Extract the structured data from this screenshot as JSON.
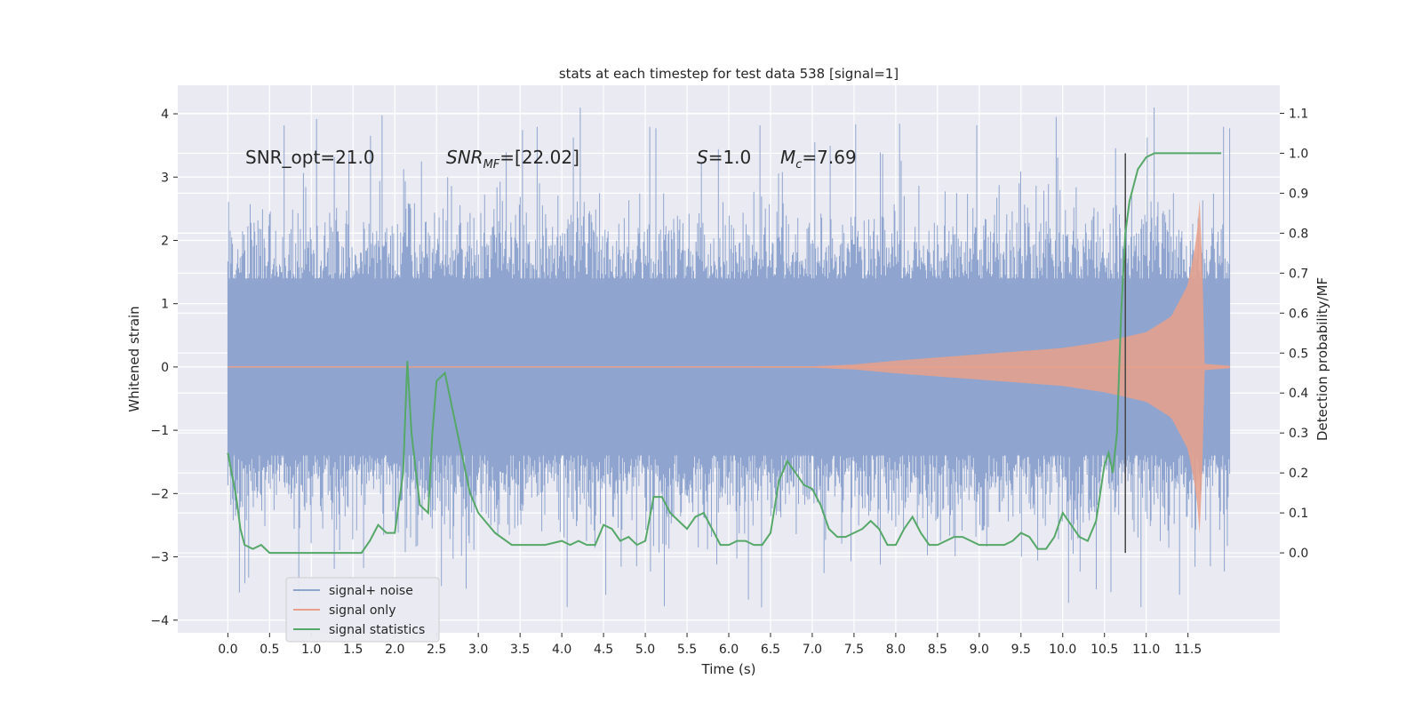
{
  "chart_data": {
    "type": "line",
    "title": "stats at each timestep for test data 538 [signal=1]",
    "xlabel": "Time (s)",
    "ylabel": "Whitened strain",
    "ylabel_right": "Detection probability/MF",
    "xlim": [
      -0.6,
      12.6
    ],
    "ylim": [
      -4.2,
      4.45
    ],
    "ylim_right": [
      -0.2,
      1.17
    ],
    "x_ticks": [
      "0.0",
      "0.5",
      "1.0",
      "1.5",
      "2.0",
      "2.5",
      "3.0",
      "3.5",
      "4.0",
      "4.5",
      "5.0",
      "5.5",
      "6.0",
      "6.5",
      "7.0",
      "7.5",
      "8.0",
      "8.5",
      "9.0",
      "9.5",
      "10.0",
      "10.5",
      "11.0",
      "11.5"
    ],
    "y_ticks": [
      "-4",
      "-3",
      "-2",
      "-1",
      "0",
      "1",
      "2",
      "3",
      "4"
    ],
    "y_ticks_right": [
      "0.0",
      "0.1",
      "0.2",
      "0.3",
      "0.4",
      "0.5",
      "0.6",
      "0.7",
      "0.8",
      "0.9",
      "1.0",
      "1.1"
    ],
    "grid": true,
    "legend_position": "lower-left",
    "annotations": {
      "snr_opt": "SNR_opt=21.0",
      "snr_mf_main": "SNR",
      "snr_mf_sub": "MF",
      "snr_mf_value": "=[22.02]",
      "s_main": "S",
      "s_value": "=1.0",
      "mc_main": "M",
      "mc_sub": "c",
      "mc_value": "=7.69"
    },
    "vertical_line_x": 10.75,
    "series": [
      {
        "name": "signal+ noise",
        "color": "#8fa5cf",
        "axis": "left",
        "description_values": {
          "x_start": 0.0,
          "x_end": 12.0,
          "core_band": [
            -1.4,
            1.4
          ],
          "peak_max": 4.1,
          "peak_min": -3.8
        }
      },
      {
        "name": "signal only",
        "color": "#e8a08a",
        "axis": "left",
        "envelope": {
          "x": [
            0.0,
            7.0,
            7.5,
            8.0,
            9.0,
            10.0,
            10.5,
            11.0,
            11.3,
            11.5,
            11.6,
            11.65,
            11.7,
            12.0
          ],
          "amplitude": [
            0.0,
            0.01,
            0.04,
            0.1,
            0.2,
            0.3,
            0.4,
            0.55,
            0.8,
            1.3,
            2.0,
            2.8,
            0.05,
            0.02
          ]
        }
      },
      {
        "name": "signal statistics",
        "color": "#55a868",
        "axis": "right",
        "x": [
          0.0,
          0.1,
          0.15,
          0.2,
          0.3,
          0.4,
          0.5,
          0.6,
          0.8,
          1.0,
          1.2,
          1.4,
          1.6,
          1.7,
          1.8,
          1.9,
          2.0,
          2.1,
          2.15,
          2.2,
          2.3,
          2.4,
          2.45,
          2.5,
          2.6,
          2.7,
          2.8,
          2.9,
          3.0,
          3.2,
          3.4,
          3.6,
          3.8,
          4.0,
          4.1,
          4.2,
          4.3,
          4.4,
          4.5,
          4.6,
          4.7,
          4.8,
          4.9,
          5.0,
          5.1,
          5.2,
          5.3,
          5.4,
          5.5,
          5.6,
          5.7,
          5.8,
          5.9,
          6.0,
          6.1,
          6.2,
          6.3,
          6.4,
          6.5,
          6.6,
          6.7,
          6.8,
          6.9,
          7.0,
          7.1,
          7.2,
          7.3,
          7.4,
          7.5,
          7.6,
          7.7,
          7.8,
          7.9,
          8.0,
          8.1,
          8.2,
          8.3,
          8.4,
          8.5,
          8.6,
          8.7,
          8.8,
          8.9,
          9.0,
          9.1,
          9.2,
          9.3,
          9.4,
          9.5,
          9.6,
          9.7,
          9.8,
          9.9,
          10.0,
          10.1,
          10.2,
          10.3,
          10.4,
          10.5,
          10.55,
          10.6,
          10.65,
          10.7,
          10.75,
          10.8,
          10.9,
          11.0,
          11.1,
          11.2,
          11.4,
          11.6,
          11.8,
          11.9
        ],
        "y": [
          0.25,
          0.14,
          0.06,
          0.02,
          0.01,
          0.02,
          0.0,
          0.0,
          0.0,
          0.0,
          0.0,
          0.0,
          0.0,
          0.03,
          0.07,
          0.05,
          0.05,
          0.2,
          0.48,
          0.3,
          0.12,
          0.1,
          0.3,
          0.43,
          0.45,
          0.35,
          0.25,
          0.15,
          0.1,
          0.05,
          0.02,
          0.02,
          0.02,
          0.03,
          0.02,
          0.03,
          0.02,
          0.02,
          0.07,
          0.06,
          0.03,
          0.04,
          0.02,
          0.03,
          0.14,
          0.14,
          0.1,
          0.08,
          0.06,
          0.09,
          0.1,
          0.06,
          0.02,
          0.02,
          0.03,
          0.03,
          0.02,
          0.02,
          0.05,
          0.18,
          0.23,
          0.2,
          0.17,
          0.16,
          0.12,
          0.06,
          0.04,
          0.04,
          0.05,
          0.06,
          0.08,
          0.06,
          0.02,
          0.02,
          0.06,
          0.09,
          0.05,
          0.02,
          0.02,
          0.03,
          0.04,
          0.04,
          0.03,
          0.02,
          0.02,
          0.02,
          0.02,
          0.03,
          0.05,
          0.04,
          0.01,
          0.01,
          0.04,
          0.1,
          0.07,
          0.04,
          0.03,
          0.08,
          0.22,
          0.25,
          0.2,
          0.3,
          0.6,
          0.8,
          0.88,
          0.96,
          0.99,
          1.0,
          1.0,
          1.0,
          1.0,
          1.0,
          1.0
        ]
      }
    ]
  }
}
